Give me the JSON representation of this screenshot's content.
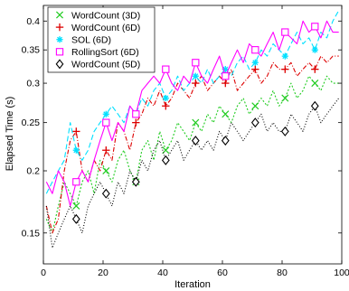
{
  "chart_data": {
    "type": "line",
    "title": "",
    "xlabel": "Iteration",
    "ylabel": "Elapsed Time (s)",
    "xlim": [
      0,
      100
    ],
    "ylim": [
      0.13,
      0.43
    ],
    "yscale": "log",
    "xticks": [
      0,
      20,
      40,
      60,
      80,
      100
    ],
    "yticks": [
      0.15,
      0.2,
      0.25,
      0.3,
      0.35,
      0.4
    ],
    "ytick_labels": [
      "0.15",
      "0.2",
      "0.25",
      "0.3",
      "0.35",
      "0.4"
    ],
    "grid": false,
    "legend_position": "top-left",
    "x": [
      1,
      3,
      5,
      7,
      9,
      11,
      13,
      15,
      17,
      19,
      21,
      23,
      25,
      27,
      29,
      31,
      33,
      35,
      37,
      39,
      41,
      43,
      45,
      47,
      49,
      51,
      53,
      55,
      57,
      59,
      61,
      63,
      65,
      67,
      69,
      71,
      73,
      75,
      77,
      79,
      81,
      83,
      85,
      87,
      89,
      91,
      93,
      95,
      97,
      99
    ],
    "series": [
      {
        "name": "WordCount (3D)",
        "color": "#22cc22",
        "dash": "2,2",
        "marker": "x",
        "marker_every": 10,
        "values": [
          0.16,
          0.15,
          0.17,
          0.19,
          0.18,
          0.17,
          0.19,
          0.2,
          0.18,
          0.21,
          0.2,
          0.19,
          0.21,
          0.22,
          0.2,
          0.19,
          0.22,
          0.23,
          0.21,
          0.24,
          0.22,
          0.23,
          0.25,
          0.24,
          0.23,
          0.25,
          0.24,
          0.26,
          0.25,
          0.27,
          0.26,
          0.25,
          0.27,
          0.28,
          0.26,
          0.27,
          0.28,
          0.27,
          0.29,
          0.27,
          0.28,
          0.3,
          0.28,
          0.29,
          0.31,
          0.3,
          0.29,
          0.31,
          0.3,
          0.3
        ]
      },
      {
        "name": "WordCount (6D)",
        "color": "#dd0000",
        "dash": "5,2,1,2",
        "marker": "+",
        "marker_every": 10,
        "values": [
          0.17,
          0.15,
          0.16,
          0.2,
          0.23,
          0.24,
          0.2,
          0.19,
          0.21,
          0.2,
          0.22,
          0.21,
          0.25,
          0.24,
          0.22,
          0.25,
          0.26,
          0.28,
          0.27,
          0.29,
          0.27,
          0.28,
          0.3,
          0.29,
          0.28,
          0.3,
          0.31,
          0.29,
          0.3,
          0.31,
          0.3,
          0.32,
          0.29,
          0.3,
          0.31,
          0.32,
          0.3,
          0.31,
          0.33,
          0.32,
          0.32,
          0.33,
          0.31,
          0.32,
          0.33,
          0.32,
          0.34,
          0.33,
          0.34,
          0.34
        ]
      },
      {
        "name": "SOL (6D)",
        "color": "#00e0ff",
        "dash": "6,3",
        "marker": "*",
        "marker_every": 10,
        "values": [
          0.18,
          0.19,
          0.2,
          0.21,
          0.25,
          0.22,
          0.21,
          0.22,
          0.24,
          0.25,
          0.26,
          0.27,
          0.26,
          0.25,
          0.27,
          0.26,
          0.28,
          0.27,
          0.29,
          0.3,
          0.28,
          0.29,
          0.31,
          0.29,
          0.3,
          0.31,
          0.3,
          0.32,
          0.3,
          0.31,
          0.32,
          0.31,
          0.33,
          0.34,
          0.32,
          0.33,
          0.35,
          0.34,
          0.36,
          0.35,
          0.34,
          0.36,
          0.38,
          0.36,
          0.37,
          0.35,
          0.38,
          0.37,
          0.4,
          0.42
        ]
      },
      {
        "name": "RollingSort (6D)",
        "color": "#ff00ff",
        "dash": "",
        "marker": "square",
        "marker_every": 10,
        "values": [
          0.19,
          0.18,
          0.2,
          0.19,
          0.17,
          0.19,
          0.2,
          0.19,
          0.21,
          0.23,
          0.25,
          0.23,
          0.25,
          0.24,
          0.27,
          0.26,
          0.29,
          0.3,
          0.31,
          0.3,
          0.32,
          0.3,
          0.29,
          0.31,
          0.3,
          0.33,
          0.31,
          0.3,
          0.32,
          0.34,
          0.31,
          0.33,
          0.35,
          0.33,
          0.36,
          0.35,
          0.34,
          0.36,
          0.38,
          0.35,
          0.38,
          0.37,
          0.36,
          0.4,
          0.38,
          0.39,
          0.37,
          0.4,
          0.38,
          0.38
        ]
      },
      {
        "name": "WordCount (5D)",
        "color": "#000000",
        "dash": "1,2",
        "marker": "diamond",
        "marker_every": 10,
        "values": [
          0.17,
          0.14,
          0.15,
          0.16,
          0.17,
          0.16,
          0.15,
          0.17,
          0.18,
          0.19,
          0.18,
          0.17,
          0.19,
          0.18,
          0.2,
          0.19,
          0.21,
          0.2,
          0.22,
          0.23,
          0.21,
          0.22,
          0.23,
          0.21,
          0.22,
          0.23,
          0.22,
          0.23,
          0.22,
          0.24,
          0.23,
          0.25,
          0.24,
          0.23,
          0.24,
          0.25,
          0.26,
          0.24,
          0.25,
          0.24,
          0.24,
          0.26,
          0.25,
          0.24,
          0.26,
          0.27,
          0.25,
          0.26,
          0.27,
          0.28
        ]
      }
    ]
  }
}
